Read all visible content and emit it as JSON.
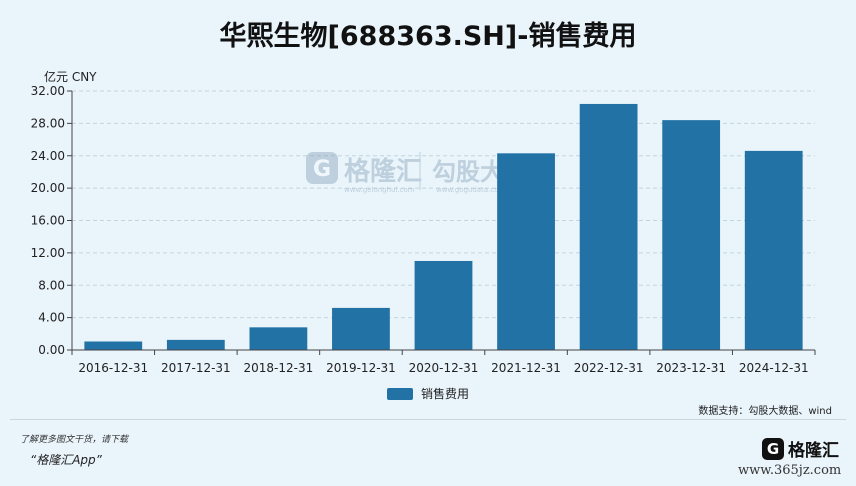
{
  "title": "华熙生物[688363.SH]-销售费用",
  "watermark": {
    "logo_letter": "G",
    "brand": "格隆汇",
    "brand_url": "www.gelonghui.com",
    "partner": "勾股大数据",
    "partner_url": "www.gogudata.com"
  },
  "chart_data": {
    "type": "bar",
    "unit_label": "亿元  CNY",
    "categories": [
      "2016-12-31",
      "2017-12-31",
      "2018-12-31",
      "2019-12-31",
      "2020-12-31",
      "2021-12-31",
      "2022-12-31",
      "2023-12-31",
      "2024-12-31"
    ],
    "series": [
      {
        "name": "销售费用",
        "values": [
          1.05,
          1.25,
          2.8,
          5.2,
          11.0,
          24.3,
          30.4,
          28.4,
          24.6
        ]
      }
    ],
    "ylim": [
      0,
      32
    ],
    "yticks": [
      "0.00",
      "4.00",
      "8.00",
      "12.00",
      "16.00",
      "20.00",
      "24.00",
      "28.00",
      "32.00"
    ],
    "grid": true,
    "legend_position": "bottom-center",
    "bar_color": "#2272a6"
  },
  "source": "数据支持：勾股大数据、wind",
  "footer": {
    "note": "了解更多图文干货，请下载",
    "app": "“格隆汇App”",
    "logo_letter": "G",
    "logo_text": "格隆汇",
    "site": "www.365jz.com"
  }
}
